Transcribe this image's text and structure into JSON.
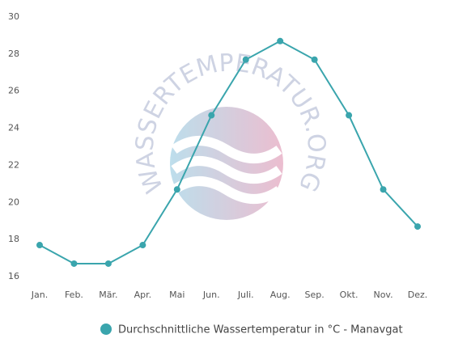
{
  "chart_data": {
    "type": "line",
    "watermark": "WASSERTEMPERATUR.ORG",
    "categories": [
      "Jan.",
      "Feb.",
      "Mär.",
      "Apr.",
      "Mai",
      "Jun.",
      "Juli.",
      "Aug.",
      "Sep.",
      "Okt.",
      "Nov.",
      "Dez."
    ],
    "series": [
      {
        "name": "Durchschnittliche Wassertemperatur in °C - Manavgat",
        "color": "#3aa5ad",
        "values": [
          17.7,
          16.7,
          16.7,
          17.7,
          20.7,
          24.7,
          27.7,
          28.7,
          27.7,
          24.7,
          20.7,
          18.7
        ]
      }
    ],
    "ylim": [
      16,
      30
    ],
    "yticks": [
      16,
      18,
      20,
      22,
      24,
      26,
      28,
      30
    ],
    "grid": false,
    "legend": "bottom"
  }
}
